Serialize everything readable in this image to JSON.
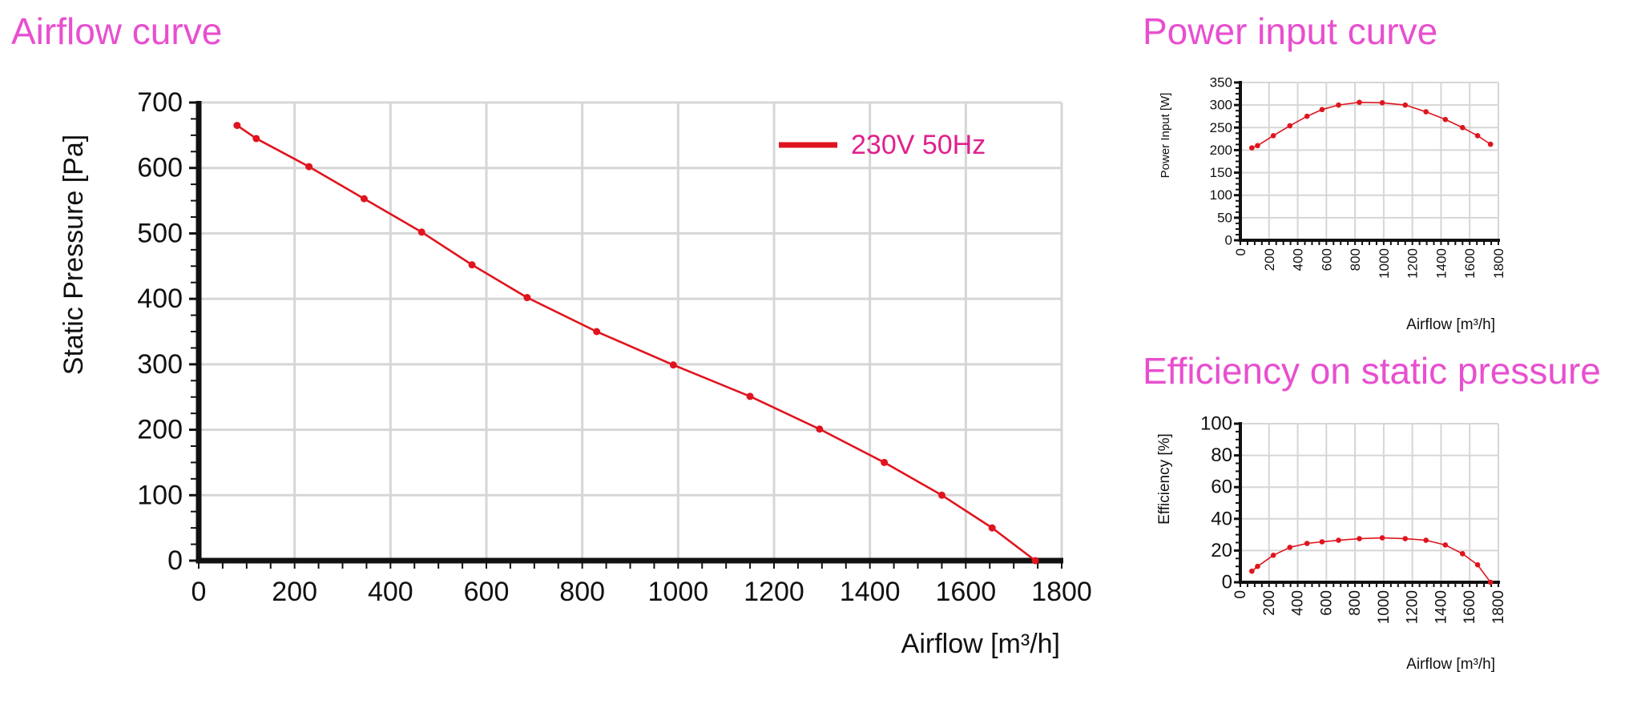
{
  "colors": {
    "title": "#e84fcf",
    "series": "#e0141e",
    "legend_text": "#e0208c",
    "grid": "#d6d6d6",
    "axis": "#111111"
  },
  "sections": {
    "airflow_title": "Airflow curve",
    "power_title": "Power input curve",
    "efficiency_title": "Efficiency on static pressure"
  },
  "chart_data": [
    {
      "id": "airflow",
      "type": "line",
      "title": "Airflow curve",
      "xlabel": "Airflow [m³/h]",
      "ylabel": "Static Pressure [Pa]",
      "xlim": [
        0,
        1800
      ],
      "ylim": [
        0,
        700
      ],
      "xticks": [
        0,
        200,
        400,
        600,
        800,
        1000,
        1200,
        1400,
        1600,
        1800
      ],
      "yticks": [
        0,
        100,
        200,
        300,
        400,
        500,
        600,
        700
      ],
      "grid": true,
      "legend_position": "top-right",
      "series": [
        {
          "name": "230V 50Hz",
          "x": [
            80,
            120,
            230,
            345,
            465,
            570,
            685,
            830,
            990,
            1150,
            1295,
            1430,
            1550,
            1655,
            1745
          ],
          "y": [
            665,
            645,
            602,
            553,
            502,
            452,
            402,
            350,
            299,
            251,
            201,
            150,
            100,
            50,
            0
          ]
        }
      ]
    },
    {
      "id": "power",
      "type": "line",
      "title": "Power input curve",
      "xlabel": "Airflow [m³/h]",
      "ylabel": "Power Input [W]",
      "xlim": [
        0,
        1800
      ],
      "ylim": [
        0,
        350
      ],
      "xticks": [
        0,
        200,
        400,
        600,
        800,
        1000,
        1200,
        1400,
        1600,
        1800
      ],
      "yticks": [
        0,
        50,
        100,
        150,
        200,
        250,
        300,
        350
      ],
      "grid": true,
      "series": [
        {
          "x": [
            80,
            120,
            230,
            345,
            465,
            570,
            685,
            830,
            990,
            1150,
            1295,
            1430,
            1550,
            1655,
            1745
          ],
          "y": [
            205,
            210,
            232,
            254,
            275,
            290,
            300,
            306,
            305,
            300,
            285,
            268,
            250,
            232,
            213
          ]
        }
      ]
    },
    {
      "id": "efficiency",
      "type": "line",
      "title": "Efficiency on static pressure",
      "xlabel": "Airflow [m³/h]",
      "ylabel": "Efficiency  [%]",
      "xlim": [
        0,
        1800
      ],
      "ylim": [
        0,
        100
      ],
      "xticks": [
        0,
        200,
        400,
        600,
        800,
        1000,
        1200,
        1400,
        1600,
        1800
      ],
      "yticks": [
        0,
        20,
        40,
        60,
        80,
        100
      ],
      "grid": true,
      "series": [
        {
          "x": [
            80,
            120,
            230,
            345,
            465,
            570,
            685,
            830,
            990,
            1150,
            1295,
            1430,
            1550,
            1655,
            1745
          ],
          "y": [
            7,
            10,
            17,
            22,
            24.5,
            25.5,
            26.5,
            27.5,
            28,
            27.5,
            26.5,
            23.5,
            18,
            11,
            0
          ]
        }
      ]
    }
  ]
}
